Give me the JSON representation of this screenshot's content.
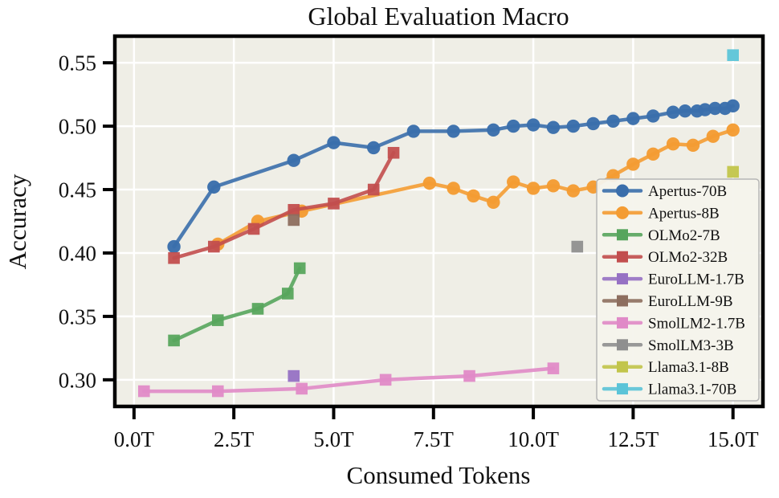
{
  "chart_data": {
    "type": "line",
    "title": "Global Evaluation Macro",
    "xlabel": "Consumed Tokens",
    "ylabel": "Accuracy",
    "xlim": [
      -0.48,
      15.75
    ],
    "ylim": [
      0.279,
      0.571
    ],
    "grid": true,
    "legend_position": "right-middle",
    "x_ticks": [
      {
        "value": 0.0,
        "label": "0.0T"
      },
      {
        "value": 2.5,
        "label": "2.5T"
      },
      {
        "value": 5.0,
        "label": "5.0T"
      },
      {
        "value": 7.5,
        "label": "7.5T"
      },
      {
        "value": 10.0,
        "label": "10.0T"
      },
      {
        "value": 12.5,
        "label": "12.5T"
      },
      {
        "value": 15.0,
        "label": "15.0T"
      }
    ],
    "y_ticks": [
      {
        "value": 0.3,
        "label": "0.30"
      },
      {
        "value": 0.35,
        "label": "0.35"
      },
      {
        "value": 0.4,
        "label": "0.40"
      },
      {
        "value": 0.45,
        "label": "0.45"
      },
      {
        "value": 0.5,
        "label": "0.50"
      },
      {
        "value": 0.55,
        "label": "0.55"
      }
    ],
    "style": {
      "plot_bg": "#EFEEE6",
      "grid_color": "#FFFFFF",
      "frame_color": "#000000",
      "legend_bg": "#F4F3EC",
      "legend_border": "#B5B5B5",
      "text_color": "#111111"
    },
    "series": [
      {
        "name": "Apertus-70B",
        "color": "#3A6EAB",
        "marker": "circle",
        "points": [
          [
            1.0,
            0.405
          ],
          [
            2.0,
            0.452
          ],
          [
            4.0,
            0.473
          ],
          [
            5.0,
            0.487
          ],
          [
            6.0,
            0.483
          ],
          [
            7.0,
            0.496
          ],
          [
            8.0,
            0.496
          ],
          [
            9.0,
            0.497
          ],
          [
            9.5,
            0.5
          ],
          [
            10.0,
            0.501
          ],
          [
            10.5,
            0.499
          ],
          [
            11.0,
            0.5
          ],
          [
            11.5,
            0.502
          ],
          [
            12.0,
            0.504
          ],
          [
            12.5,
            0.506
          ],
          [
            13.0,
            0.508
          ],
          [
            13.5,
            0.511
          ],
          [
            13.8,
            0.512
          ],
          [
            14.1,
            0.512
          ],
          [
            14.3,
            0.513
          ],
          [
            14.55,
            0.514
          ],
          [
            14.8,
            0.514
          ],
          [
            15.0,
            0.516
          ]
        ]
      },
      {
        "name": "Apertus-8B",
        "color": "#F49C33",
        "marker": "circle",
        "points": [
          [
            2.1,
            0.407
          ],
          [
            3.1,
            0.425
          ],
          [
            4.2,
            0.433
          ],
          [
            7.4,
            0.455
          ],
          [
            8.0,
            0.451
          ],
          [
            8.5,
            0.445
          ],
          [
            9.0,
            0.44
          ],
          [
            9.5,
            0.456
          ],
          [
            10.0,
            0.451
          ],
          [
            10.5,
            0.453
          ],
          [
            11.0,
            0.449
          ],
          [
            11.5,
            0.452
          ],
          [
            12.0,
            0.461
          ],
          [
            12.5,
            0.47
          ],
          [
            13.0,
            0.478
          ],
          [
            13.5,
            0.486
          ],
          [
            14.0,
            0.485
          ],
          [
            14.5,
            0.492
          ],
          [
            15.0,
            0.497
          ]
        ]
      },
      {
        "name": "OLMo2-7B",
        "color": "#57A55D",
        "marker": "square",
        "points": [
          [
            1.0,
            0.331
          ],
          [
            2.1,
            0.347
          ],
          [
            3.1,
            0.356
          ],
          [
            3.85,
            0.368
          ],
          [
            4.15,
            0.388
          ]
        ]
      },
      {
        "name": "OLMo2-32B",
        "color": "#C24E4E",
        "marker": "square",
        "points": [
          [
            1.0,
            0.396
          ],
          [
            2.0,
            0.405
          ],
          [
            3.0,
            0.419
          ],
          [
            4.0,
            0.434
          ],
          [
            5.0,
            0.439
          ],
          [
            6.0,
            0.45
          ],
          [
            6.5,
            0.479
          ]
        ]
      },
      {
        "name": "EuroLLM-1.7B",
        "color": "#9671C4",
        "marker": "square",
        "points": [
          [
            4.0,
            0.303
          ]
        ]
      },
      {
        "name": "EuroLLM-9B",
        "color": "#8D6E5F",
        "marker": "square",
        "points": [
          [
            4.0,
            0.426
          ]
        ]
      },
      {
        "name": "SmolLM2-1.7B",
        "color": "#E08AC7",
        "marker": "square",
        "points": [
          [
            0.25,
            0.291
          ],
          [
            2.1,
            0.291
          ],
          [
            4.2,
            0.293
          ],
          [
            6.3,
            0.3
          ],
          [
            8.4,
            0.303
          ],
          [
            10.5,
            0.309
          ]
        ]
      },
      {
        "name": "SmolLM3-3B",
        "color": "#8F8F8F",
        "marker": "square",
        "points": [
          [
            11.1,
            0.405
          ]
        ]
      },
      {
        "name": "Llama3.1-8B",
        "color": "#C2C54B",
        "marker": "square",
        "points": [
          [
            15.0,
            0.464
          ]
        ]
      },
      {
        "name": "Llama3.1-70B",
        "color": "#5BC4D8",
        "marker": "square",
        "points": [
          [
            15.0,
            0.556
          ]
        ]
      }
    ]
  }
}
